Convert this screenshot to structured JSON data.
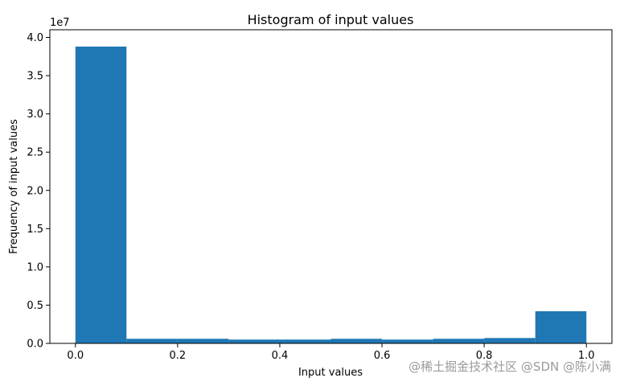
{
  "chart_data": {
    "type": "bar",
    "title": "Histogram of input values",
    "xlabel": "Input values",
    "ylabel": "Frequency of input values",
    "y_offset_label": "1e7",
    "xlim": [
      -0.05,
      1.05
    ],
    "ylim": [
      0,
      4.1
    ],
    "y_multiplier": 10000000,
    "bin_edges": [
      0.0,
      0.1,
      0.2,
      0.3,
      0.4,
      0.5,
      0.6,
      0.7,
      0.8,
      0.9,
      1.0
    ],
    "values": [
      3.88,
      0.06,
      0.06,
      0.05,
      0.05,
      0.06,
      0.05,
      0.06,
      0.07,
      0.42
    ],
    "x_ticks": [
      0.0,
      0.2,
      0.4,
      0.6,
      0.8,
      1.0
    ],
    "x_tick_labels": [
      "0.0",
      "0.2",
      "0.4",
      "0.6",
      "0.8",
      "1.0"
    ],
    "y_ticks": [
      0.0,
      0.5,
      1.0,
      1.5,
      2.0,
      2.5,
      3.0,
      3.5,
      4.0
    ],
    "y_tick_labels": [
      "0.0",
      "0.5",
      "1.0",
      "1.5",
      "2.0",
      "2.5",
      "3.0",
      "3.5",
      "4.0"
    ],
    "bar_color": "#1f77b4",
    "grid": false,
    "legend": "none"
  },
  "watermark": "@稀土掘金技术社区 @SDN @陈小满"
}
